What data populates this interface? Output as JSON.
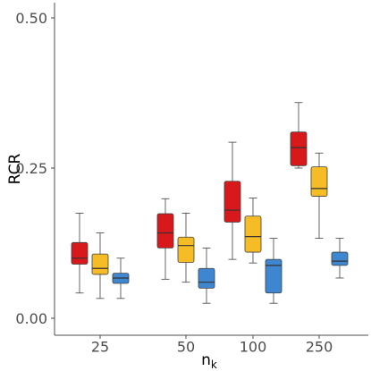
{
  "chart_data": {
    "type": "boxplot",
    "xlabel": "n",
    "xlabel_sub": "k",
    "ylabel": "RCR",
    "ylim": [
      0.0,
      0.52
    ],
    "yticks": [
      0.0,
      0.25,
      0.5
    ],
    "ytick_labels": [
      "0.00",
      "0.25",
      "0.50"
    ],
    "categories": [
      "25",
      "50",
      "100",
      "250"
    ],
    "grid": false,
    "legend": "none",
    "series": [
      {
        "color": "#d7191c",
        "boxes": [
          {
            "min": 0.042,
            "q1": 0.09,
            "median": 0.1,
            "q3": 0.126,
            "max": 0.175
          },
          {
            "min": 0.065,
            "q1": 0.117,
            "median": 0.142,
            "q3": 0.174,
            "max": 0.199
          },
          {
            "min": 0.098,
            "q1": 0.16,
            "median": 0.18,
            "q3": 0.228,
            "max": 0.293
          },
          {
            "min": 0.25,
            "q1": 0.254,
            "median": 0.284,
            "q3": 0.31,
            "max": 0.359
          }
        ]
      },
      {
        "color": "#f5bc25",
        "boxes": [
          {
            "min": 0.033,
            "q1": 0.073,
            "median": 0.083,
            "q3": 0.107,
            "max": 0.142
          },
          {
            "min": 0.06,
            "q1": 0.093,
            "median": 0.121,
            "q3": 0.135,
            "max": 0.175
          },
          {
            "min": 0.092,
            "q1": 0.11,
            "median": 0.136,
            "q3": 0.17,
            "max": 0.2
          },
          {
            "min": 0.133,
            "q1": 0.203,
            "median": 0.216,
            "q3": 0.252,
            "max": 0.275
          }
        ]
      },
      {
        "color": "#3f86d1",
        "boxes": [
          {
            "min": 0.033,
            "q1": 0.058,
            "median": 0.067,
            "q3": 0.075,
            "max": 0.1
          },
          {
            "min": 0.025,
            "q1": 0.05,
            "median": 0.06,
            "q3": 0.083,
            "max": 0.117
          },
          {
            "min": 0.025,
            "q1": 0.042,
            "median": 0.088,
            "q3": 0.098,
            "max": 0.133
          },
          {
            "min": 0.067,
            "q1": 0.088,
            "median": 0.095,
            "q3": 0.11,
            "max": 0.133
          }
        ]
      }
    ]
  }
}
